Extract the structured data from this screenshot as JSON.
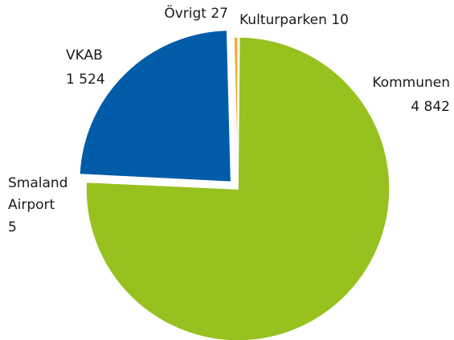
{
  "chart_data": {
    "type": "pie",
    "categories": [
      "Kulturparken",
      "Kommunen",
      "Smaland Airport",
      "VKAB",
      "Övrigt"
    ],
    "values": [
      10,
      4842,
      5,
      1524,
      27
    ],
    "value_labels": [
      "10",
      "4 842",
      "5",
      "1 524",
      "27"
    ],
    "colors": [
      "#1a1a1a",
      "#96c11f",
      "#ffffff",
      "#005ca9",
      "#f0a830"
    ],
    "exploded": [
      false,
      false,
      false,
      true,
      false
    ]
  }
}
